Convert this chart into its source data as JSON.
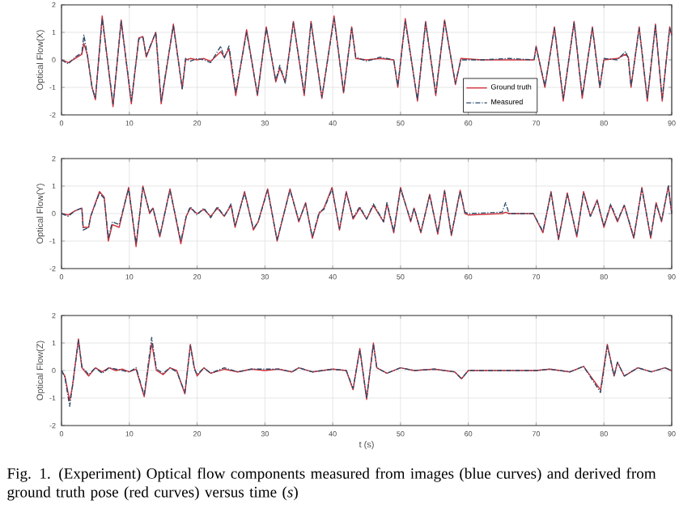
{
  "chart_data": [
    {
      "type": "line",
      "ylabel": "Optical Flow(X)",
      "xlim": [
        0,
        90
      ],
      "ylim": [
        -2,
        2
      ],
      "xticks": [
        0,
        10,
        20,
        30,
        40,
        50,
        60,
        70,
        80,
        90
      ],
      "yticks": [
        -2,
        -1,
        0,
        1,
        2
      ],
      "grid": true,
      "legend": "bottom",
      "x": [
        0,
        1,
        2,
        3,
        3.3,
        3.8,
        4.5,
        5,
        6,
        7.6,
        8.8,
        10.3,
        11.4,
        12,
        12.5,
        13.9,
        14.7,
        16.5,
        17.8,
        18.3,
        19,
        20,
        21,
        22,
        23.5,
        24,
        24.7,
        25.7,
        27.3,
        28.9,
        30.2,
        31.6,
        32.2,
        33,
        34.2,
        35.8,
        36.8,
        38.4,
        40.2,
        41.6,
        42.8,
        43.4,
        45,
        47,
        49,
        49.6,
        50.7,
        52.5,
        53.7,
        55.2,
        56.5,
        58.1,
        58.9,
        62,
        66,
        69.7,
        70,
        71.3,
        72.7,
        74,
        75.6,
        76.8,
        78.3,
        79.4,
        80,
        82,
        83.2,
        83.6,
        84,
        85.2,
        86.4,
        87.6,
        88.6,
        89.7,
        90
      ],
      "series": [
        {
          "name": "Ground truth",
          "color": "#d0303a",
          "line_style": "solid",
          "values": [
            0,
            -0.1,
            0.05,
            0.2,
            0.6,
            0.2,
            -1.0,
            -1.45,
            1.6,
            -1.7,
            1.45,
            -1.6,
            0.8,
            0.85,
            0.1,
            1.0,
            -1.6,
            1.3,
            -1.05,
            0,
            0.05,
            0,
            0.05,
            -0.05,
            0.3,
            0.1,
            0.4,
            -1.3,
            1.1,
            -1.3,
            1.2,
            -0.8,
            -0.3,
            -0.8,
            1.4,
            -1.3,
            1.4,
            -1.4,
            1.6,
            -1.2,
            1.2,
            0.05,
            0,
            0.05,
            0,
            -1.0,
            1.5,
            -1.5,
            1.4,
            -1.3,
            1.45,
            -0.9,
            0.05,
            0,
            0,
            0,
            0.5,
            -1.0,
            1.2,
            -1.5,
            1.4,
            -1.4,
            1.2,
            -1.0,
            0,
            0.05,
            0.2,
            0.1,
            -1.0,
            1.2,
            -1.5,
            1.3,
            -1.5,
            1.2,
            0.9
          ]
        },
        {
          "name": "Measured",
          "color": "#2a4a6a",
          "line_style": "dashed",
          "values": [
            0,
            -0.15,
            0.1,
            0.25,
            0.9,
            0.2,
            -1.0,
            -1.4,
            1.5,
            -1.6,
            1.4,
            -1.5,
            0.75,
            0.85,
            0.15,
            1.0,
            -1.5,
            1.25,
            -1.05,
            0.05,
            -0.05,
            0.05,
            0,
            -0.1,
            0.5,
            0.05,
            0.5,
            -1.2,
            1.0,
            -1.25,
            1.15,
            -0.75,
            -0.2,
            -0.85,
            1.35,
            -1.2,
            1.35,
            -1.35,
            1.5,
            -1.15,
            1.15,
            0.1,
            -0.05,
            0.1,
            0,
            -0.95,
            1.4,
            -1.45,
            1.35,
            -1.2,
            1.4,
            -0.85,
            0,
            0,
            0.05,
            0,
            0.45,
            -0.95,
            1.15,
            -1.4,
            1.35,
            -1.3,
            1.15,
            -1.0,
            0.05,
            0,
            0.3,
            0.05,
            -0.95,
            1.15,
            -1.4,
            1.25,
            -1.4,
            1.15,
            0.9
          ]
        }
      ]
    },
    {
      "type": "line",
      "ylabel": "Optical Flow(Y)",
      "xlim": [
        0,
        90
      ],
      "ylim": [
        -2,
        2
      ],
      "xticks": [
        0,
        10,
        20,
        30,
        40,
        50,
        60,
        70,
        80,
        90
      ],
      "yticks": [
        -2,
        -1,
        0,
        1,
        2
      ],
      "grid": true,
      "x": [
        0,
        1,
        2,
        3,
        3.2,
        4,
        4.3,
        5.6,
        6.3,
        6.9,
        7.5,
        8.5,
        9.9,
        11,
        12,
        13,
        13.5,
        14.5,
        16,
        17.6,
        18.4,
        19,
        20,
        21,
        22,
        23,
        24,
        25,
        25.6,
        27,
        28.3,
        29,
        30.4,
        31.8,
        33.7,
        35,
        36,
        37,
        38,
        38.7,
        39.9,
        41,
        42,
        43,
        44,
        45,
        46,
        47.5,
        48,
        49,
        50,
        51.5,
        52,
        53,
        54.3,
        55.5,
        56.5,
        57.5,
        58.8,
        59.5,
        60,
        65,
        65.5,
        66,
        69.6,
        71,
        72.2,
        73.3,
        74.6,
        76,
        77,
        78,
        79,
        80,
        81,
        82,
        83,
        84.4,
        85.6,
        86.9,
        87.7,
        88.5,
        89.5,
        90
      ],
      "series": [
        {
          "color": "#d0303a",
          "line_style": "solid",
          "values": [
            0,
            -0.05,
            0.1,
            0.2,
            -0.5,
            -0.5,
            -0.1,
            0.8,
            0.6,
            -1.0,
            -0.4,
            -0.5,
            0.95,
            -1.2,
            1.0,
            0,
            0.2,
            -0.85,
            0.9,
            -1.1,
            -0.1,
            0.2,
            0,
            0.15,
            -0.1,
            0.2,
            -0.1,
            0.3,
            -0.5,
            0.8,
            -0.6,
            -0.3,
            0.9,
            -1.0,
            0.9,
            -0.3,
            0.4,
            -0.9,
            0,
            0.2,
            0.95,
            -0.6,
            0.8,
            -0.2,
            0.2,
            -0.2,
            0.3,
            -0.3,
            0.35,
            -0.7,
            0.95,
            -0.3,
            0.2,
            -0.7,
            0.7,
            -0.75,
            0.85,
            -0.8,
            0.85,
            0,
            -0.05,
            0,
            0.05,
            0,
            0,
            -0.7,
            0.8,
            -0.95,
            0.75,
            -0.85,
            0.8,
            -0.1,
            0.5,
            -0.5,
            0.3,
            -0.3,
            0.3,
            -0.9,
            0.95,
            -0.9,
            0.4,
            -0.3,
            1.0,
            0
          ]
        },
        {
          "color": "#2a4a6a",
          "line_style": "dashed",
          "values": [
            0,
            -0.1,
            0.1,
            0.2,
            -0.6,
            -0.5,
            -0.1,
            0.75,
            0.55,
            -0.9,
            -0.3,
            -0.4,
            0.9,
            -1.1,
            0.95,
            0.05,
            0.2,
            -0.8,
            0.85,
            -1.0,
            -0.1,
            0.25,
            -0.05,
            0.2,
            -0.15,
            0.25,
            -0.1,
            0.35,
            -0.45,
            0.75,
            -0.55,
            -0.3,
            0.85,
            -0.95,
            0.85,
            -0.25,
            0.35,
            -0.85,
            0.05,
            0.15,
            0.9,
            -0.55,
            0.75,
            -0.15,
            0.25,
            -0.2,
            0.35,
            -0.3,
            0.4,
            -0.65,
            0.9,
            -0.25,
            0.2,
            -0.65,
            0.65,
            -0.7,
            0.8,
            -0.75,
            0.8,
            0.05,
            0,
            0.05,
            0.4,
            0,
            0,
            -0.65,
            0.75,
            -0.9,
            0.7,
            -0.8,
            0.75,
            -0.1,
            0.45,
            -0.45,
            0.35,
            -0.25,
            0.3,
            -0.85,
            0.9,
            -0.85,
            0.35,
            -0.25,
            1.0,
            0
          ]
        }
      ]
    },
    {
      "type": "line",
      "ylabel": "Optical Flow(Z)",
      "xlabel": "t (s)",
      "xlim": [
        0,
        90
      ],
      "ylim": [
        -2,
        2
      ],
      "xticks": [
        0,
        10,
        20,
        30,
        40,
        50,
        60,
        70,
        80,
        90
      ],
      "yticks": [
        -2,
        -1,
        0,
        1,
        2
      ],
      "grid": true,
      "annotations": [
        "Fig. 1.   (Experiment) Optical flow components measured from images (blue curves) and derived from ground truth pose (red curves) versus time (*s*)"
      ],
      "x": [
        0,
        0.5,
        1.2,
        1.6,
        2.5,
        3,
        4,
        5,
        6,
        7,
        8,
        9,
        10,
        11,
        12.2,
        13.3,
        14,
        15,
        16,
        17,
        18.2,
        19,
        19.6,
        20,
        21,
        22,
        24,
        26,
        28,
        30,
        32,
        34,
        35,
        37,
        40,
        42,
        43,
        44,
        45,
        46,
        46.5,
        48,
        50,
        52,
        55,
        58,
        59,
        60,
        65,
        70,
        72,
        75,
        77,
        79.5,
        80.5,
        81.5,
        82,
        83,
        85,
        87,
        89,
        90
      ],
      "series": [
        {
          "color": "#d0303a",
          "line_style": "solid",
          "values": [
            0,
            -0.2,
            -1.1,
            -0.6,
            1.15,
            0.1,
            -0.2,
            0.1,
            -0.05,
            0.1,
            0,
            0.05,
            -0.05,
            0.05,
            -0.95,
            1.0,
            0,
            -0.15,
            0.1,
            0,
            -0.85,
            0.95,
            0.1,
            -0.2,
            0.1,
            -0.1,
            0.05,
            -0.05,
            0.05,
            0,
            0.05,
            -0.05,
            0.1,
            -0.05,
            0.05,
            0,
            -0.7,
            0.8,
            -1.05,
            1.0,
            0.1,
            -0.1,
            0.1,
            0,
            0.05,
            -0.05,
            -0.3,
            0,
            0,
            0,
            0.05,
            -0.05,
            0.15,
            -0.7,
            0.95,
            -0.2,
            0.3,
            -0.2,
            0.1,
            -0.05,
            0.1,
            0
          ]
        },
        {
          "color": "#2a4a6a",
          "line_style": "dashed",
          "values": [
            0,
            -0.25,
            -1.3,
            -0.6,
            1.1,
            0.15,
            -0.15,
            0.1,
            -0.1,
            0.1,
            0.05,
            0,
            -0.05,
            0.1,
            -0.9,
            1.2,
            0.05,
            -0.1,
            0.1,
            -0.05,
            -0.8,
            0.9,
            0.05,
            -0.15,
            0.1,
            -0.1,
            0.1,
            -0.05,
            0.05,
            0.05,
            0.05,
            -0.05,
            0.1,
            -0.05,
            0.05,
            0,
            -0.65,
            0.75,
            -1.0,
            0.95,
            0.1,
            -0.1,
            0.1,
            0,
            0.05,
            -0.05,
            -0.3,
            0,
            0,
            0,
            0.05,
            -0.05,
            0.15,
            -0.8,
            0.9,
            -0.2,
            0.3,
            -0.2,
            0.1,
            -0.05,
            0.1,
            0
          ]
        }
      ]
    }
  ]
}
